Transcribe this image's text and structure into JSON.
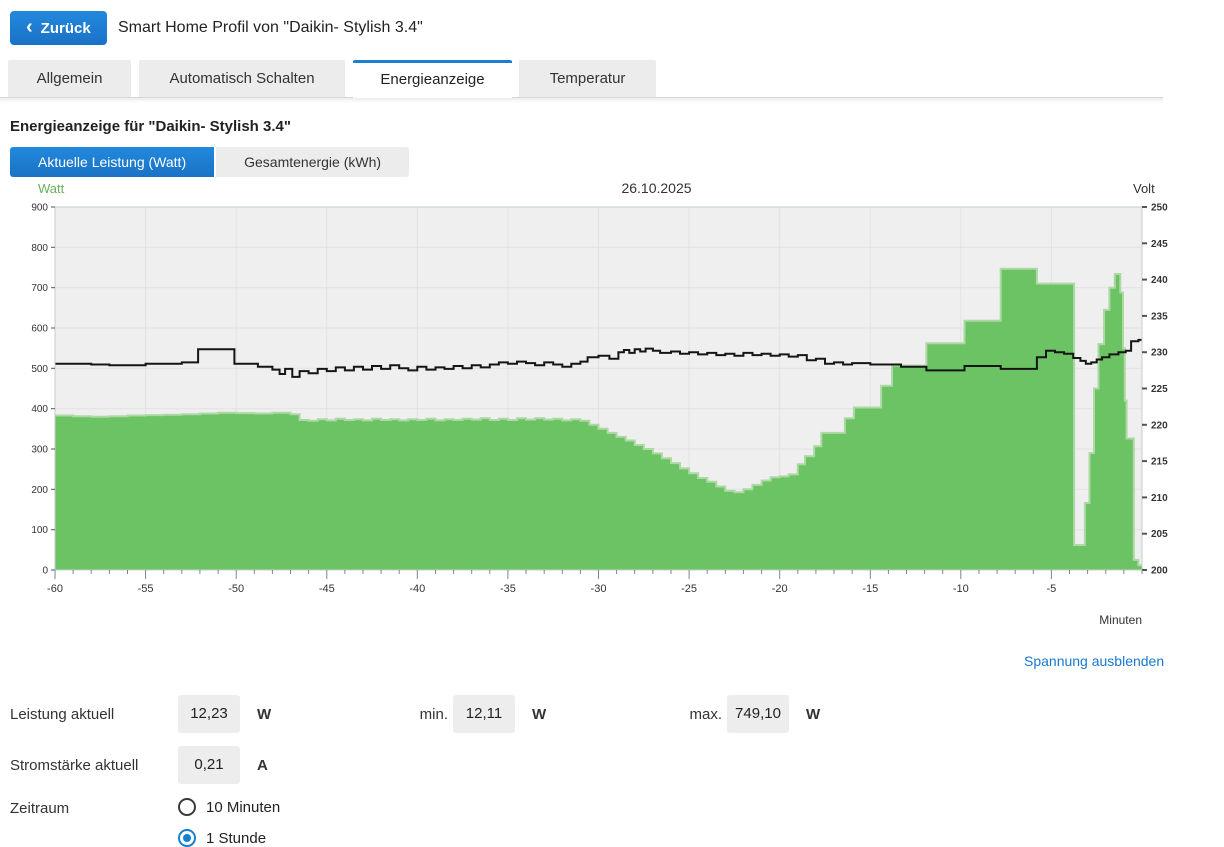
{
  "header": {
    "back_button": "Zurück",
    "back_chevron": "‹",
    "title": "Smart Home Profil von \"Daikin- Stylish 3.4\""
  },
  "tabs": [
    {
      "label": "Allgemein",
      "active": false
    },
    {
      "label": "Automatisch Schalten",
      "active": false
    },
    {
      "label": "Energieanzeige",
      "active": true
    },
    {
      "label": "Temperatur",
      "active": false
    }
  ],
  "section_title": "Energieanzeige für \"Daikin- Stylish 3.4\"",
  "view_toggle": {
    "active_label": "Aktuelle Leistung (Watt)",
    "inactive_label": "Gesamtenergie (kWh)"
  },
  "voltage_toggle_link": "Spannung ausblenden",
  "readings": {
    "power_label": "Leistung aktuell",
    "power_value": "12,23",
    "power_unit": "W",
    "min_label": "min.",
    "min_value": "12,11",
    "min_unit": "W",
    "max_label": "max.",
    "max_value": "749,10",
    "max_unit": "W",
    "current_label": "Stromstärke aktuell",
    "current_value": "0,21",
    "current_unit": "A"
  },
  "zeitraum": {
    "label": "Zeitraum",
    "options": [
      {
        "label": "10 Minuten",
        "selected": false
      },
      {
        "label": "1 Stunde",
        "selected": true
      }
    ]
  },
  "colors": {
    "accent_blue": "#1c7ed0",
    "link_blue": "#1878d0",
    "power_green": "#6cc364",
    "power_green_edge": "#aed8a6",
    "voltage_line": "#151515",
    "plot_background": "#efefef",
    "grid_line": "#e2e2e2",
    "axis_label_green": "#67b25b"
  },
  "chart_data": {
    "type": "area",
    "title": "26.10.2025",
    "x_label": "Minuten",
    "x_range": [
      -60,
      0
    ],
    "x_major_ticks": [
      -60,
      -55,
      -50,
      -45,
      -40,
      -35,
      -30,
      -25,
      -20,
      -15,
      -10,
      -5
    ],
    "x_minor_tick_step": 1,
    "grid": true,
    "left_axis": {
      "label": "Watt",
      "range": [
        0,
        900
      ],
      "ticks": [
        0,
        100,
        200,
        300,
        400,
        500,
        600,
        700,
        800,
        900
      ]
    },
    "right_axis": {
      "label": "Volt",
      "range": [
        200,
        250
      ],
      "ticks": [
        200,
        205,
        210,
        215,
        220,
        225,
        230,
        235,
        240,
        245,
        250
      ]
    },
    "series": [
      {
        "name": "Aktuelle Leistung (Watt)",
        "style": "step-area",
        "axis": "left",
        "points": [
          [
            -60,
            383
          ],
          [
            -59,
            381
          ],
          [
            -58,
            380
          ],
          [
            -57,
            381
          ],
          [
            -56,
            383
          ],
          [
            -55,
            384
          ],
          [
            -54,
            385
          ],
          [
            -53,
            386
          ],
          [
            -52,
            388
          ],
          [
            -51,
            390
          ],
          [
            -50,
            389
          ],
          [
            -49,
            388
          ],
          [
            -48,
            390
          ],
          [
            -47,
            386
          ],
          [
            -46.5,
            372
          ],
          [
            -46,
            370
          ],
          [
            -45.5,
            374
          ],
          [
            -45,
            371
          ],
          [
            -44.5,
            375
          ],
          [
            -44,
            372
          ],
          [
            -43.5,
            374
          ],
          [
            -43,
            371
          ],
          [
            -42.5,
            375
          ],
          [
            -42,
            372
          ],
          [
            -41.5,
            374
          ],
          [
            -41,
            371
          ],
          [
            -40.5,
            374
          ],
          [
            -40,
            372
          ],
          [
            -39.5,
            375
          ],
          [
            -39,
            371
          ],
          [
            -38.5,
            374
          ],
          [
            -38,
            372
          ],
          [
            -37.5,
            375
          ],
          [
            -37,
            373
          ],
          [
            -36.5,
            376
          ],
          [
            -36,
            372
          ],
          [
            -35.5,
            375
          ],
          [
            -35,
            372
          ],
          [
            -34.5,
            376
          ],
          [
            -34,
            373
          ],
          [
            -33.5,
            376
          ],
          [
            -33,
            373
          ],
          [
            -32.5,
            375
          ],
          [
            -32,
            371
          ],
          [
            -31.5,
            374
          ],
          [
            -31,
            370
          ],
          [
            -30.5,
            360
          ],
          [
            -30,
            350
          ],
          [
            -29.5,
            340
          ],
          [
            -29,
            330
          ],
          [
            -28.5,
            321
          ],
          [
            -28,
            310
          ],
          [
            -27.5,
            300
          ],
          [
            -27,
            289
          ],
          [
            -26.5,
            277
          ],
          [
            -26,
            265
          ],
          [
            -25.5,
            252
          ],
          [
            -25,
            240
          ],
          [
            -24.5,
            228
          ],
          [
            -24,
            219
          ],
          [
            -23.5,
            207
          ],
          [
            -23,
            196
          ],
          [
            -22.5,
            193
          ],
          [
            -22,
            200
          ],
          [
            -21.5,
            211
          ],
          [
            -21,
            222
          ],
          [
            -20.5,
            230
          ],
          [
            -20,
            232
          ],
          [
            -19.5,
            237
          ],
          [
            -19,
            262
          ],
          [
            -18.6,
            282
          ],
          [
            -18.1,
            307
          ],
          [
            -17.7,
            340
          ],
          [
            -16.4,
            376
          ],
          [
            -15.9,
            403
          ],
          [
            -14.4,
            457
          ],
          [
            -13.8,
            507
          ],
          [
            -11.9,
            562
          ],
          [
            -9.8,
            618
          ],
          [
            -7.8,
            747
          ],
          [
            -5.8,
            710
          ],
          [
            -3.75,
            62
          ],
          [
            -3.15,
            166
          ],
          [
            -2.9,
            290
          ],
          [
            -2.65,
            450
          ],
          [
            -2.4,
            560
          ],
          [
            -2.1,
            645
          ],
          [
            -1.8,
            700
          ],
          [
            -1.5,
            734
          ],
          [
            -1.2,
            688
          ],
          [
            -1.05,
            550
          ],
          [
            -0.95,
            420
          ],
          [
            -0.85,
            326
          ],
          [
            -0.45,
            25
          ],
          [
            -0.2,
            12
          ]
        ]
      },
      {
        "name": "Spannung (Volt)",
        "style": "step-line",
        "axis": "right",
        "points": [
          [
            -60,
            228.4
          ],
          [
            -58,
            228.3
          ],
          [
            -57,
            228.2
          ],
          [
            -55,
            228.4
          ],
          [
            -53,
            228.6
          ],
          [
            -52.1,
            230.4
          ],
          [
            -50.1,
            228.4
          ],
          [
            -48.8,
            228.0
          ],
          [
            -48,
            227.6
          ],
          [
            -47.6,
            227.0
          ],
          [
            -47.3,
            227.7
          ],
          [
            -46.9,
            226.6
          ],
          [
            -46.5,
            227.4
          ],
          [
            -46,
            227.1
          ],
          [
            -45.5,
            227.7
          ],
          [
            -45,
            227.4
          ],
          [
            -44.5,
            227.9
          ],
          [
            -44,
            227.5
          ],
          [
            -43.5,
            228.0
          ],
          [
            -43,
            227.6
          ],
          [
            -42.5,
            228.1
          ],
          [
            -42,
            227.7
          ],
          [
            -41.5,
            228.2
          ],
          [
            -41,
            227.8
          ],
          [
            -40.5,
            227.5
          ],
          [
            -40,
            228.0
          ],
          [
            -39.5,
            227.6
          ],
          [
            -39,
            227.9
          ],
          [
            -38.5,
            227.7
          ],
          [
            -38,
            228.1
          ],
          [
            -37.5,
            227.8
          ],
          [
            -37,
            228.2
          ],
          [
            -36.5,
            227.9
          ],
          [
            -36,
            228.3
          ],
          [
            -35.5,
            228.6
          ],
          [
            -35,
            228.4
          ],
          [
            -34.5,
            228.7
          ],
          [
            -34,
            228.5
          ],
          [
            -33.5,
            228.2
          ],
          [
            -33,
            228.6
          ],
          [
            -32.5,
            228.3
          ],
          [
            -32,
            228.0
          ],
          [
            -31.5,
            228.4
          ],
          [
            -31,
            228.7
          ],
          [
            -30.6,
            229.3
          ],
          [
            -30,
            229.5
          ],
          [
            -29.4,
            229.1
          ],
          [
            -28.9,
            230.0
          ],
          [
            -28.6,
            230.3
          ],
          [
            -28.3,
            229.9
          ],
          [
            -28,
            230.4
          ],
          [
            -27.7,
            230.1
          ],
          [
            -27.4,
            230.5
          ],
          [
            -27,
            230.2
          ],
          [
            -26.6,
            229.9
          ],
          [
            -26,
            230.1
          ],
          [
            -25.5,
            229.8
          ],
          [
            -25,
            230.0
          ],
          [
            -24.5,
            229.7
          ],
          [
            -24,
            229.9
          ],
          [
            -23.5,
            229.6
          ],
          [
            -23,
            229.8
          ],
          [
            -22.5,
            229.5
          ],
          [
            -22,
            229.9
          ],
          [
            -21.5,
            229.6
          ],
          [
            -21,
            229.8
          ],
          [
            -20.5,
            229.5
          ],
          [
            -20,
            229.7
          ],
          [
            -19.5,
            229.4
          ],
          [
            -19,
            229.6
          ],
          [
            -18.5,
            228.9
          ],
          [
            -18,
            229.1
          ],
          [
            -17.5,
            228.4
          ],
          [
            -17,
            228.6
          ],
          [
            -16.5,
            228.3
          ],
          [
            -16,
            228.5
          ],
          [
            -15,
            228.3
          ],
          [
            -13.3,
            228.0
          ],
          [
            -11.9,
            227.5
          ],
          [
            -9.8,
            228.1
          ],
          [
            -7.8,
            227.7
          ],
          [
            -5.8,
            229.3
          ],
          [
            -5.3,
            230.2
          ],
          [
            -4.8,
            230.0
          ],
          [
            -4.3,
            229.8
          ],
          [
            -3.8,
            229.2
          ],
          [
            -3.4,
            228.8
          ],
          [
            -3.1,
            228.4
          ],
          [
            -2.8,
            228.6
          ],
          [
            -2.5,
            229.0
          ],
          [
            -2.2,
            229.3
          ],
          [
            -1.8,
            229.7
          ],
          [
            -1.3,
            230.0
          ],
          [
            -0.9,
            230.2
          ],
          [
            -0.6,
            231.5
          ],
          [
            -0.2,
            231.7
          ]
        ]
      }
    ]
  }
}
